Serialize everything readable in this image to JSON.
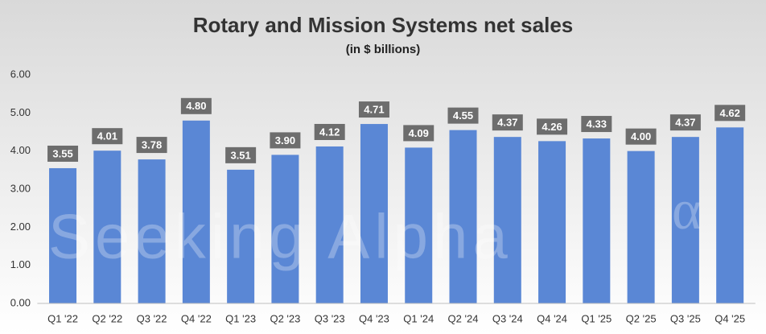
{
  "chart_data": {
    "type": "bar",
    "title": "Rotary and Mission Systems net sales",
    "subtitle": "(in $ billions)",
    "watermark": "Seeking Alpha",
    "watermark_symbol": "α",
    "categories": [
      "Q1 '22",
      "Q2 '22",
      "Q3 '22",
      "Q4 '22",
      "Q1 '23",
      "Q2 '23",
      "Q3 '23",
      "Q4 '23",
      "Q1 '24",
      "Q2 '24",
      "Q3 '24",
      "Q4 '24",
      "Q1 '25",
      "Q2 '25",
      "Q3 '25",
      "Q4 '25"
    ],
    "values": [
      3.55,
      4.01,
      3.78,
      4.8,
      3.51,
      3.9,
      4.12,
      4.71,
      4.09,
      4.55,
      4.37,
      4.26,
      4.33,
      4.0,
      4.37,
      4.62
    ],
    "value_labels": [
      "3.55",
      "4.01",
      "3.78",
      "4.80",
      "3.51",
      "3.90",
      "4.12",
      "4.71",
      "4.09",
      "4.55",
      "4.37",
      "4.26",
      "4.33",
      "4.00",
      "4.37",
      "4.62"
    ],
    "color": "#5a87d5",
    "ylim": [
      0,
      6
    ],
    "yticks": [
      {
        "value": 0,
        "label": "0.00"
      },
      {
        "value": 1,
        "label": "1.00"
      },
      {
        "value": 2,
        "label": "2.00"
      },
      {
        "value": 3,
        "label": "3.00"
      },
      {
        "value": 4,
        "label": "4.00"
      },
      {
        "value": 5,
        "label": "5.00"
      },
      {
        "value": 6,
        "label": "6.00"
      }
    ],
    "grid": false
  }
}
